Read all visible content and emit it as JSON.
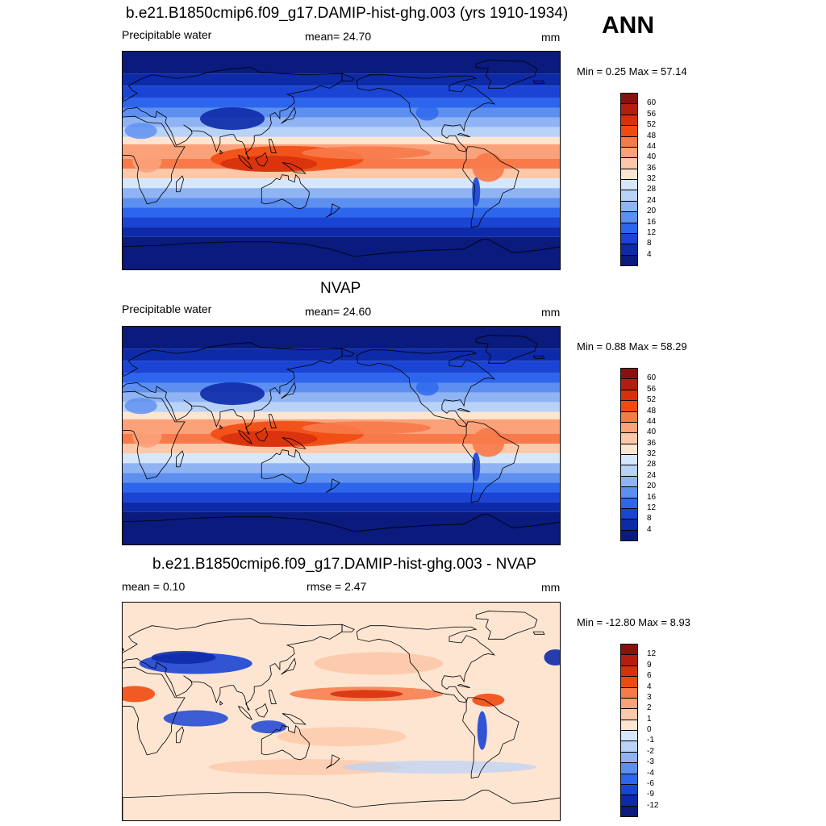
{
  "season": "ANN",
  "panels": [
    {
      "title": "b.e21.B1850cmip6.f09_g17.DAMIP-hist-ghg.003 (yrs 1910-1934)",
      "left_label": "Precipitable water",
      "center_label": "mean=  24.70",
      "units": "mm",
      "minmax": "Min =   0.25 Max =  57.14",
      "kind": "field",
      "colorbar": {
        "labels": [
          "60",
          "56",
          "52",
          "48",
          "44",
          "40",
          "36",
          "32",
          "28",
          "24",
          "20",
          "16",
          "12",
          "8",
          "4"
        ],
        "colors": [
          "#8a0f0f",
          "#b31e0e",
          "#d8300c",
          "#f04a10",
          "#f87a4a",
          "#fba27a",
          "#fcc8a8",
          "#fde5d2",
          "#d6e6fb",
          "#b8d2f8",
          "#8fb3f3",
          "#5d8ff0",
          "#2d66ec",
          "#1a44d4",
          "#0d2aa8",
          "#0a1a7d"
        ]
      }
    },
    {
      "title": "NVAP",
      "left_label": "Precipitable water",
      "center_label": "mean=  24.60",
      "units": "mm",
      "minmax": "Min =   0.88 Max =  58.29",
      "kind": "field",
      "colorbar": {
        "labels": [
          "60",
          "56",
          "52",
          "48",
          "44",
          "40",
          "36",
          "32",
          "28",
          "24",
          "20",
          "16",
          "12",
          "8",
          "4"
        ],
        "colors": [
          "#8a0f0f",
          "#b31e0e",
          "#d8300c",
          "#f04a10",
          "#f87a4a",
          "#fba27a",
          "#fcc8a8",
          "#fde5d2",
          "#d6e6fb",
          "#b8d2f8",
          "#8fb3f3",
          "#5d8ff0",
          "#2d66ec",
          "#1a44d4",
          "#0d2aa8",
          "#0a1a7d"
        ]
      }
    },
    {
      "title": "b.e21.B1850cmip6.f09_g17.DAMIP-hist-ghg.003 - NVAP",
      "left_label": "mean =   0.10",
      "center_label": "rmse =   2.47",
      "units": "mm",
      "minmax": "Min = -12.80 Max =   8.93",
      "kind": "diff",
      "colorbar": {
        "labels": [
          "12",
          "9",
          "6",
          "4",
          "3",
          "2",
          "1",
          "0",
          "-1",
          "-2",
          "-3",
          "-4",
          "-6",
          "-9",
          "-12"
        ],
        "colors": [
          "#8a0f0f",
          "#b31e0e",
          "#d8300c",
          "#f04a10",
          "#f87a4a",
          "#fba27a",
          "#fcc8a8",
          "#fde5d2",
          "#d6e6fb",
          "#b8d2f8",
          "#8fb3f3",
          "#5d8ff0",
          "#2d66ec",
          "#1a44d4",
          "#0d2aa8",
          "#0a1a7d"
        ]
      }
    }
  ]
}
